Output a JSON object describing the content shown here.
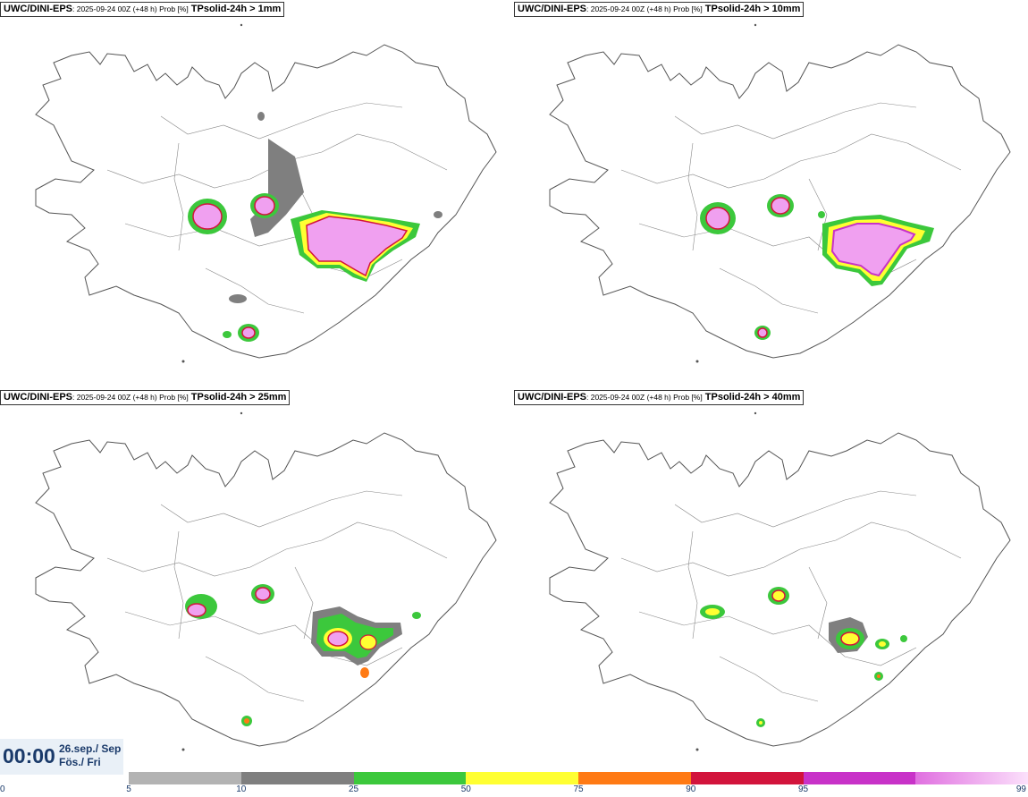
{
  "panels": [
    {
      "model": "UWC/DINI-EPS",
      "meta": ": 2025-09-24 00Z (+48 h) Prob [%]",
      "param": "TPsolid-24h > 1mm"
    },
    {
      "model": "UWC/DINI-EPS",
      "meta": ": 2025-09-24 00Z (+48 h) Prob [%]",
      "param": "TPsolid-24h > 10mm"
    },
    {
      "model": "UWC/DINI-EPS",
      "meta": ": 2025-09-24 00Z (+48 h) Prob [%]",
      "param": "TPsolid-24h > 25mm"
    },
    {
      "model": "UWC/DINI-EPS",
      "meta": ": 2025-09-24 00Z (+48 h) Prob [%]",
      "param": "TPsolid-24h > 40mm"
    }
  ],
  "valid_time": {
    "clock": "00:00",
    "date_line1": "26.sep./ Sep",
    "date_line2": "Fös./ Fri"
  },
  "legend": {
    "colors": [
      "#b3b3b3",
      "#7f7f7f",
      "#3cc83c",
      "#ffff32",
      "#ff7a14",
      "#d2143c",
      "#c832c8",
      "#f0a0f0"
    ],
    "ticks": [
      "0",
      "5",
      "10",
      "25",
      "50",
      "75",
      "90",
      "95",
      "99"
    ]
  }
}
